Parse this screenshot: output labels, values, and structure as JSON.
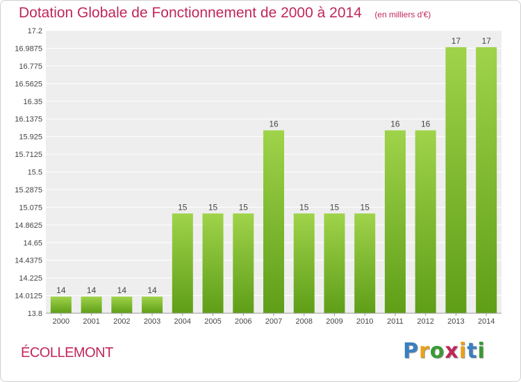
{
  "header": {
    "title": "Dotation Globale de Fonctionnement de 2000 à 2014",
    "subtitle": "(en milliers d'€)"
  },
  "footer": {
    "municipality": "ÉCOLLEMONT",
    "brand": "Proxiti",
    "brand_letters": [
      {
        "ch": "P",
        "color": "#3a7fc1"
      },
      {
        "ch": "r",
        "color": "#e8a21c"
      },
      {
        "ch": "o",
        "color": "#3a9a35"
      },
      {
        "ch": "x",
        "color": "#c0265a"
      },
      {
        "ch": "i",
        "color": "#e8a21c"
      },
      {
        "ch": "t",
        "color": "#3a7fc1"
      },
      {
        "ch": "i",
        "color": "#3a9a35"
      }
    ]
  },
  "colors": {
    "accent": "#c0265a",
    "bar_top": "#9fd34a",
    "bar_bottom": "#5f9e18",
    "plot_background": "#eeeeee",
    "gridline": "#ffffff",
    "axis_text": "#444444"
  },
  "chart_data": {
    "type": "bar",
    "title": "Dotation Globale de Fonctionnement de 2000 à 2014",
    "subtitle": "(en milliers d'€)",
    "xlabel": "",
    "ylabel": "",
    "categories": [
      "2000",
      "2001",
      "2002",
      "2003",
      "2004",
      "2005",
      "2006",
      "2007",
      "2008",
      "2009",
      "2010",
      "2011",
      "2012",
      "2013",
      "2014"
    ],
    "values": [
      14,
      14,
      14,
      14,
      15,
      15,
      15,
      16,
      15,
      15,
      15,
      16,
      16,
      17,
      17
    ],
    "data_labels": [
      "14",
      "14",
      "14",
      "14",
      "15",
      "15",
      "15",
      "16",
      "15",
      "15",
      "15",
      "16",
      "16",
      "17",
      "17"
    ],
    "ylim": [
      13.8,
      17.2
    ],
    "yticks": [
      13.8,
      14.0125,
      14.225,
      14.4375,
      14.65,
      14.8625,
      15.075,
      15.2875,
      15.5,
      15.7125,
      15.925,
      16.1375,
      16.35,
      16.5625,
      16.775,
      16.9875,
      17.2
    ],
    "ytick_labels": [
      "13.8",
      "14.0125",
      "14.225",
      "14.4375",
      "14.65",
      "14.8625",
      "15.075",
      "15.2875",
      "15.5",
      "15.7125",
      "15.925",
      "16.1375",
      "16.35",
      "16.5625",
      "16.775",
      "16.9875",
      "17.2"
    ],
    "grid": true,
    "legend": "none"
  }
}
